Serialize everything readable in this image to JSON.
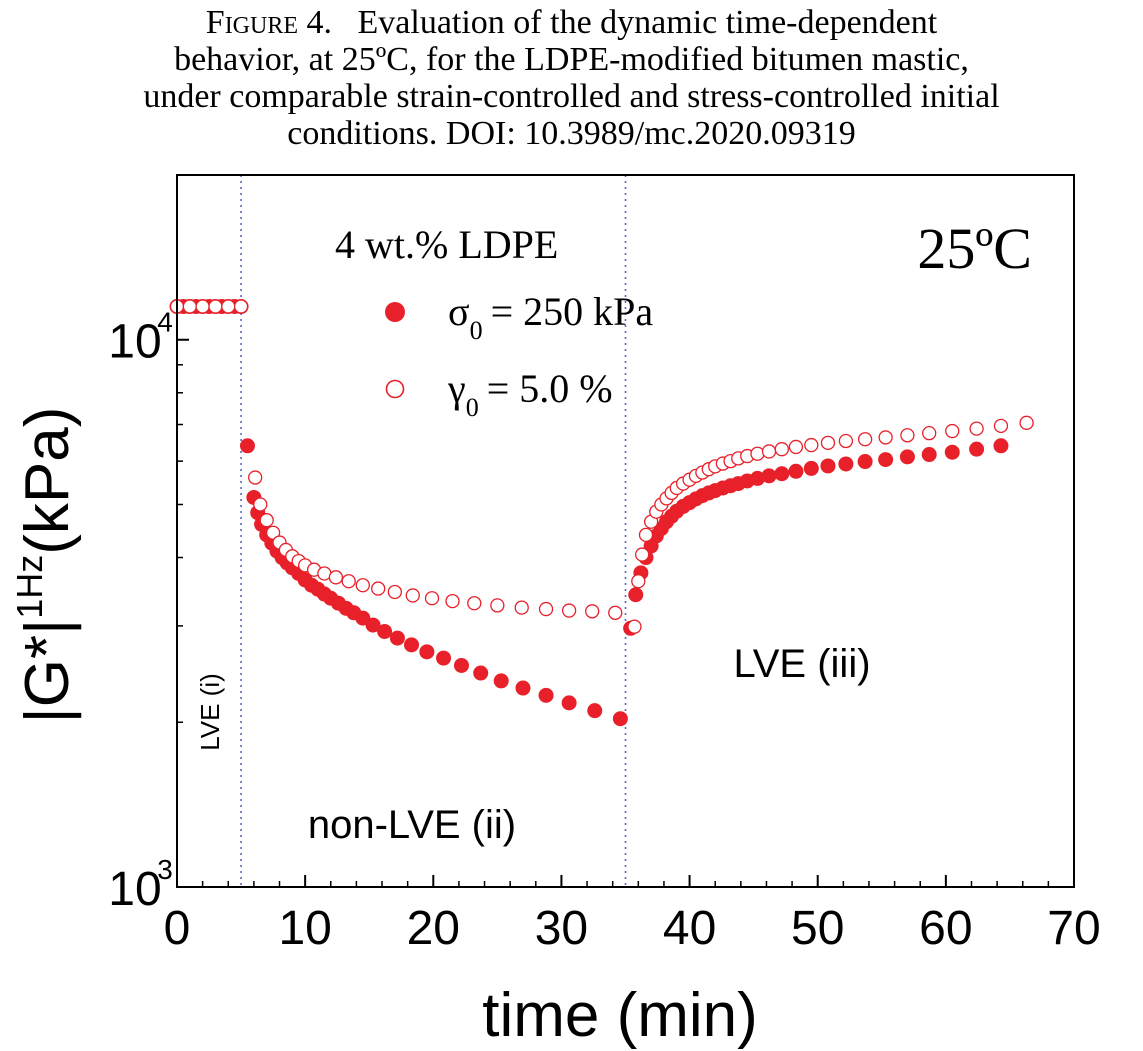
{
  "caption": {
    "label": "Figure 4.",
    "line1": "Evaluation of the dynamic time-dependent",
    "line2": "behavior, at 25ºC, for the LDPE-modified bitumen mastic,",
    "line3": "under comparable strain-controlled and stress-controlled initial",
    "line4": "conditions. DOI: 10.3989/mc.2020.09319"
  },
  "chart_data": {
    "type": "scatter",
    "xlabel": "time (min)",
    "ylabel_main": "|G*|",
    "ylabel_sup": "1Hz",
    "ylabel_unit": "(kPa)",
    "xlim": [
      0,
      70
    ],
    "ylim": [
      1000,
      20000
    ],
    "yscale": "log",
    "xticks": [
      0,
      10,
      20,
      30,
      40,
      50,
      60,
      70
    ],
    "xtick_labels": [
      "0",
      "10",
      "20",
      "30",
      "40",
      "50",
      "60",
      "70"
    ],
    "yticks": [
      {
        "value": 1000,
        "base": "10",
        "exp": "3"
      },
      {
        "value": 10000,
        "base": "10",
        "exp": "4"
      }
    ],
    "legend": {
      "title": "4 wt.% LDPE",
      "placement": "top-center",
      "entries": [
        {
          "symbol": "σ",
          "sub": "0",
          "text": "= 250 kPa",
          "marker": "filled"
        },
        {
          "symbol": "γ",
          "sub": "0",
          "text": "= 5.0 %",
          "marker": "open"
        }
      ]
    },
    "temperature_label": "25ºC",
    "regions": [
      {
        "label": "LVE (i)",
        "boundary_x": 5
      },
      {
        "label": "non-LVE (ii)"
      },
      {
        "label": "LVE (iii)",
        "boundary_x": 35
      }
    ],
    "colors": {
      "marker": "#e8202a",
      "divider": "#5566cc"
    },
    "series": [
      {
        "name": "σ0 = 250 kPa",
        "marker": "filled",
        "x": [
          0,
          0.5,
          1,
          1.5,
          2,
          2.5,
          3,
          3.5,
          4,
          4.5,
          5,
          5.5,
          6,
          6.3,
          6.6,
          7,
          7.4,
          7.8,
          8.2,
          8.6,
          9,
          9.5,
          10,
          10.5,
          11,
          11.5,
          12,
          12.6,
          13.2,
          13.8,
          14.5,
          15.3,
          16.2,
          17.2,
          18.3,
          19.5,
          20.8,
          22.2,
          23.7,
          25.3,
          27,
          28.8,
          30.6,
          32.6,
          34.6,
          35.4,
          35.8,
          36.2,
          36.6,
          37,
          37.4,
          37.8,
          38.2,
          38.6,
          39,
          39.5,
          40,
          40.5,
          41,
          41.5,
          42,
          42.6,
          43.2,
          43.8,
          44.5,
          45.3,
          46.2,
          47.2,
          48.3,
          49.5,
          50.8,
          52.2,
          53.7,
          55.3,
          57,
          58.7,
          60.5,
          62.4,
          64.3
        ],
        "y": [
          11500,
          11500,
          11500,
          11500,
          11500,
          11500,
          11500,
          11500,
          11500,
          11500,
          11500,
          6400,
          5150,
          4830,
          4600,
          4400,
          4250,
          4110,
          4000,
          3910,
          3830,
          3740,
          3640,
          3560,
          3500,
          3430,
          3370,
          3300,
          3230,
          3170,
          3100,
          3010,
          2930,
          2850,
          2770,
          2690,
          2620,
          2540,
          2460,
          2380,
          2310,
          2240,
          2170,
          2100,
          2030,
          2970,
          3420,
          3750,
          4000,
          4200,
          4380,
          4520,
          4650,
          4760,
          4860,
          4960,
          5040,
          5120,
          5190,
          5250,
          5300,
          5360,
          5410,
          5460,
          5520,
          5580,
          5640,
          5690,
          5750,
          5820,
          5880,
          5930,
          5990,
          6040,
          6110,
          6170,
          6230,
          6310,
          6400
        ]
      },
      {
        "name": "γ0 = 5.0 %",
        "marker": "open",
        "x": [
          0,
          1,
          2,
          3,
          4,
          5,
          6.1,
          6.5,
          7,
          7.5,
          8,
          8.5,
          9,
          9.5,
          10,
          10.7,
          11.5,
          12.4,
          13.4,
          14.5,
          15.7,
          17,
          18.4,
          19.9,
          21.5,
          23.2,
          25,
          26.9,
          28.8,
          30.6,
          32.4,
          34.2,
          35.7,
          36,
          36.3,
          36.6,
          37,
          37.4,
          37.8,
          38.2,
          38.6,
          39,
          39.5,
          40,
          40.5,
          41,
          41.5,
          42,
          42.6,
          43.2,
          43.8,
          44.5,
          45.3,
          46.2,
          47.2,
          48.3,
          49.5,
          50.8,
          52.2,
          53.7,
          55.3,
          57,
          58.7,
          60.5,
          62.4,
          64.3,
          66.3
        ],
        "y": [
          11500,
          11500,
          11500,
          11500,
          11500,
          11500,
          5600,
          5000,
          4680,
          4440,
          4260,
          4130,
          4020,
          3940,
          3870,
          3800,
          3740,
          3680,
          3620,
          3560,
          3510,
          3460,
          3410,
          3370,
          3330,
          3300,
          3270,
          3240,
          3220,
          3200,
          3190,
          3170,
          2990,
          3620,
          4050,
          4400,
          4650,
          4850,
          5000,
          5130,
          5250,
          5360,
          5460,
          5550,
          5640,
          5720,
          5800,
          5870,
          5940,
          6000,
          6070,
          6130,
          6190,
          6250,
          6310,
          6370,
          6420,
          6480,
          6530,
          6580,
          6630,
          6690,
          6750,
          6810,
          6880,
          6960,
          7050
        ]
      }
    ]
  }
}
